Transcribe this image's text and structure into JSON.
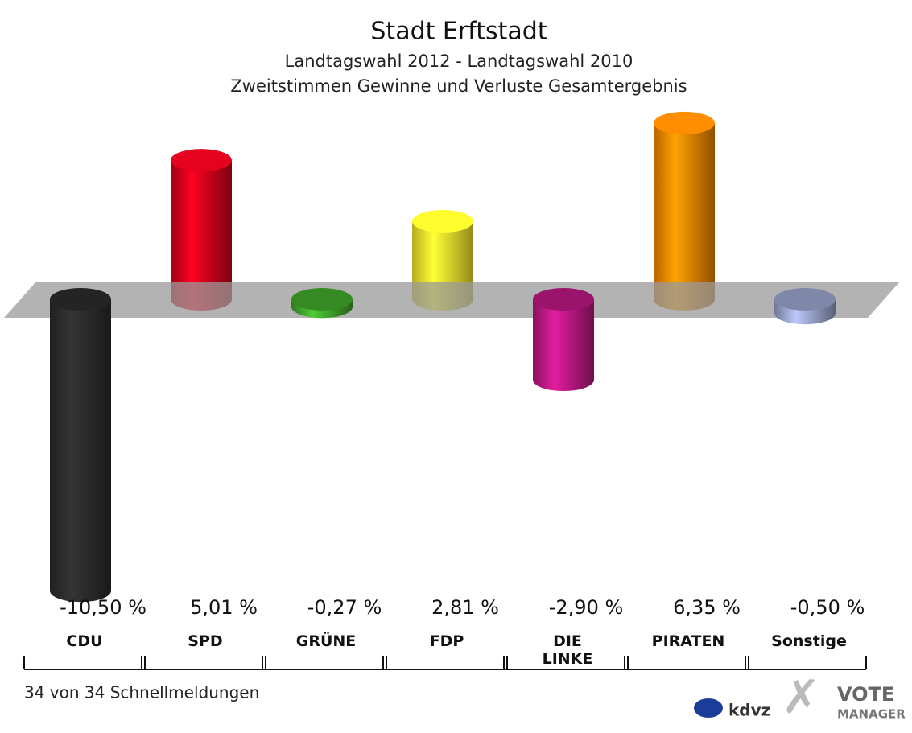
{
  "chart_data": {
    "type": "bar",
    "title": "Stadt Erftstadt",
    "subtitle": [
      "Landtagswahl 2012 - Landtagswahl 2010",
      "Zweitstimmen Gewinne und Verluste Gesamtergebnis"
    ],
    "categories": [
      "CDU",
      "SPD",
      "GRÜNE",
      "FDP",
      "DIE LINKE",
      "PIRATEN",
      "Sonstige"
    ],
    "values": [
      -10.5,
      5.01,
      -0.27,
      2.81,
      -2.9,
      6.35,
      -0.5
    ],
    "value_labels": [
      "-10,50 %",
      "5,01 %",
      "-0,27 %",
      "2,81 %",
      "-2,90 %",
      "6,35 %",
      "-0,50 %"
    ],
    "colors": [
      "#2a2a2a",
      "#d0021b",
      "#3fa22a",
      "#f5e52a",
      "#b5177f",
      "#f58200",
      "#96a0c8"
    ],
    "footer": "34 von 34 Schnellmeldungen",
    "logos": [
      "kdvz",
      "VOTE",
      "MANAGER"
    ]
  }
}
